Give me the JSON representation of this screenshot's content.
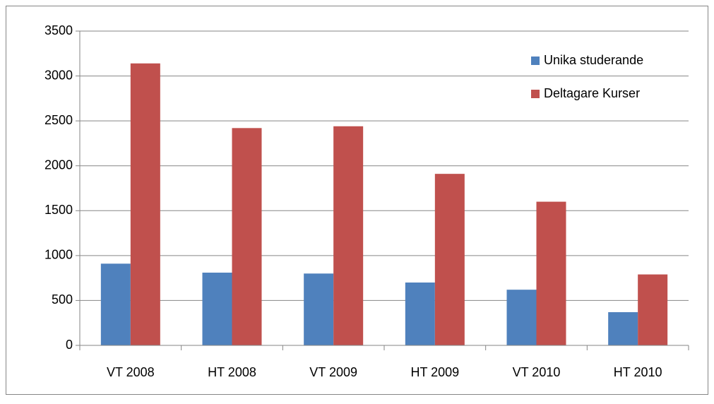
{
  "chart_data": {
    "type": "bar",
    "categories": [
      "VT 2008",
      "HT 2008",
      "VT 2009",
      "HT 2009",
      "VT 2010",
      "HT 2010"
    ],
    "series": [
      {
        "name": "Unika studerande",
        "color": "#4f81bd",
        "values": [
          910,
          810,
          800,
          700,
          620,
          370
        ]
      },
      {
        "name": "Deltagare Kurser",
        "color": "#c0504d",
        "values": [
          3140,
          2420,
          2440,
          1910,
          1600,
          790
        ]
      }
    ],
    "ylim": [
      0,
      3500
    ],
    "yticks": [
      0,
      500,
      1000,
      1500,
      2000,
      2500,
      3000,
      3500
    ],
    "grid": true,
    "legend": "top-right"
  }
}
